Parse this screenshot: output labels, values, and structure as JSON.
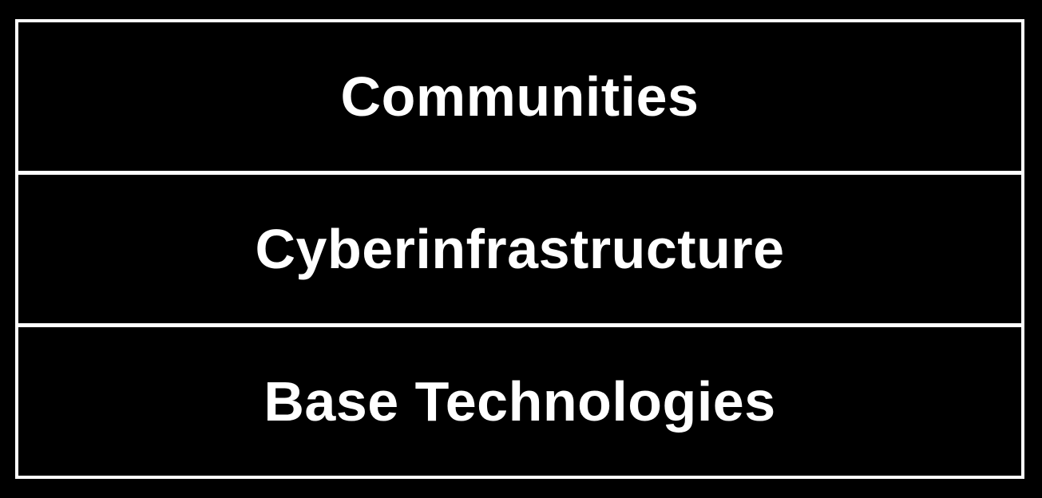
{
  "diagram": {
    "layers": [
      {
        "label": "Communities"
      },
      {
        "label": "Cyberinfrastructure"
      },
      {
        "label": "Base Technologies"
      }
    ]
  }
}
